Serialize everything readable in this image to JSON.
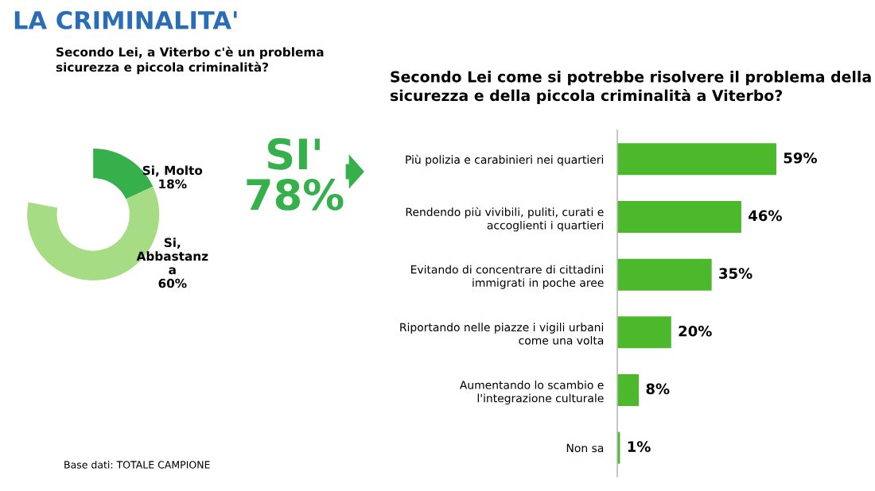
{
  "chart_data": [
    {
      "type": "donut",
      "title": "LA CRIMINALITA'",
      "subtitle": "Secondo Lei, a Viterbo c'è un problema\nsicurezza e piccola criminalità?",
      "categories": [
        "Si, Molto",
        "Si,\nAbbastanz\na"
      ],
      "values": [
        18,
        60
      ],
      "colors": [
        "#35b04b",
        "#a6dc83"
      ],
      "value_labels": [
        "18%",
        "60%"
      ],
      "annotations": [
        "SI'\n78%",
        "Base dati: TOTALE CAMPIONE"
      ]
    },
    {
      "type": "bar",
      "orientation": "horizontal",
      "title": "Secondo Lei come si potrebbe risolvere il problema della\nsicurezza e della piccola criminalità a Viterbo?",
      "categories": [
        "Più polizia e carabinieri nei quartieri",
        "Rendendo più vivibili, puliti, curati e\naccoglienti i quartieri",
        "Evitando di concentrare di cittadini\nimmigrati in poche aree",
        "Riportando nelle piazze i vigili urbani\ncome una volta",
        "Aumentando lo scambio e\nl'integrazione culturale",
        "Non sa"
      ],
      "values": [
        59,
        46,
        35,
        20,
        8,
        1
      ],
      "color": "#4cb82c",
      "value_labels": [
        "59%",
        "46%",
        "35%",
        "20%",
        "8%",
        "1%"
      ]
    }
  ]
}
